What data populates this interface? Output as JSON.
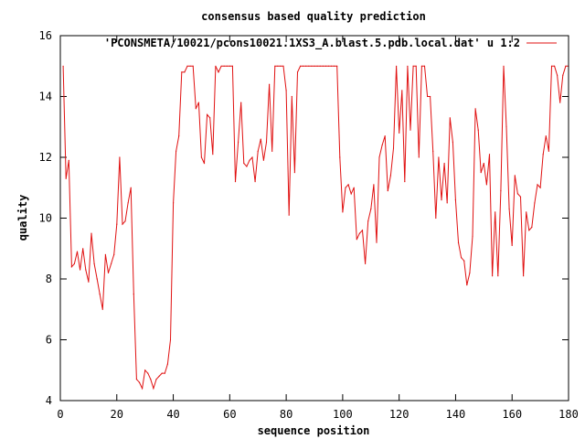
{
  "chart_data": {
    "type": "line",
    "title": "consensus based quality prediction",
    "xlabel": "sequence position",
    "ylabel": "quality",
    "xlim": [
      0,
      180
    ],
    "ylim": [
      4,
      16
    ],
    "xticks": [
      0,
      20,
      40,
      60,
      80,
      100,
      120,
      140,
      160,
      180
    ],
    "yticks": [
      4,
      6,
      8,
      10,
      12,
      14,
      16
    ],
    "grid": false,
    "legend_position": "top-right",
    "series": [
      {
        "name": "'PCONSMETA/10021/pcons10021.1XS3_A.blast.5.pdb.local.dat' u 1:2",
        "color": "#e01010",
        "x": [
          1,
          2,
          3,
          4,
          5,
          6,
          7,
          8,
          9,
          10,
          11,
          12,
          13,
          14,
          15,
          16,
          17,
          18,
          19,
          20,
          21,
          22,
          23,
          24,
          25,
          26,
          27,
          28,
          29,
          30,
          31,
          32,
          33,
          34,
          35,
          36,
          37,
          38,
          39,
          40,
          41,
          42,
          43,
          44,
          45,
          46,
          47,
          48,
          49,
          50,
          51,
          52,
          53,
          54,
          55,
          56,
          57,
          58,
          59,
          60,
          61,
          62,
          63,
          64,
          65,
          66,
          67,
          68,
          69,
          70,
          71,
          72,
          73,
          74,
          75,
          76,
          77,
          78,
          79,
          80,
          81,
          82,
          83,
          84,
          85,
          86,
          87,
          88,
          89,
          90,
          91,
          92,
          93,
          94,
          95,
          96,
          97,
          98,
          99,
          100,
          101,
          102,
          103,
          104,
          105,
          106,
          107,
          108,
          109,
          110,
          111,
          112,
          113,
          114,
          115,
          116,
          117,
          118,
          119,
          120,
          121,
          122,
          123,
          124,
          125,
          126,
          127,
          128,
          129,
          130,
          131,
          132,
          133,
          134,
          135,
          136,
          137,
          138,
          139,
          140,
          141,
          142,
          143,
          144,
          145,
          146,
          147,
          148,
          149,
          150,
          151,
          152,
          153,
          154,
          155,
          156,
          157,
          158,
          159,
          160,
          161,
          162,
          163,
          164,
          165,
          166,
          167,
          168,
          169,
          170,
          171,
          172,
          173,
          174,
          175,
          176,
          177,
          178,
          179,
          180
        ],
        "y": [
          15.0,
          11.3,
          11.9,
          8.4,
          8.5,
          8.9,
          8.3,
          9.0,
          8.3,
          7.9,
          9.5,
          8.5,
          8.0,
          7.5,
          7.0,
          8.8,
          8.2,
          8.5,
          8.8,
          9.8,
          12.0,
          9.8,
          9.9,
          10.5,
          11.0,
          7.5,
          4.7,
          4.6,
          4.4,
          5.0,
          4.9,
          4.7,
          4.4,
          4.7,
          4.8,
          4.9,
          4.9,
          5.2,
          6.0,
          10.5,
          12.2,
          12.7,
          14.8,
          14.8,
          15.0,
          15.0,
          15.0,
          13.6,
          13.8,
          12.0,
          11.8,
          13.4,
          13.3,
          12.1,
          15.0,
          14.8,
          15.0,
          15.0,
          15.0,
          15.0,
          15.0,
          11.2,
          12.5,
          13.8,
          11.8,
          11.7,
          11.9,
          12.0,
          11.2,
          12.2,
          12.6,
          11.9,
          12.5,
          14.4,
          12.2,
          15.0,
          15.0,
          15.0,
          15.0,
          14.2,
          10.1,
          14.0,
          11.5,
          14.8,
          15.0,
          15.0,
          15.0,
          15.0,
          15.0,
          15.0,
          15.0,
          15.0,
          15.0,
          15.0,
          15.0,
          15.0,
          15.0,
          15.0,
          12.0,
          10.2,
          11.0,
          11.1,
          10.8,
          11.0,
          9.3,
          9.5,
          9.6,
          8.5,
          9.9,
          10.3,
          11.1,
          9.2,
          12.0,
          12.4,
          12.7,
          10.9,
          11.4,
          12.3,
          15.0,
          12.8,
          14.2,
          11.2,
          15.0,
          12.9,
          15.0,
          15.0,
          12.0,
          15.0,
          15.0,
          14.0,
          14.0,
          12.2,
          10.0,
          12.0,
          10.6,
          11.8,
          10.5,
          13.3,
          12.5,
          10.6,
          9.2,
          8.7,
          8.6,
          7.8,
          8.2,
          9.4,
          13.6,
          12.9,
          11.5,
          11.8,
          11.1,
          12.1,
          8.1,
          10.2,
          8.1,
          10.9,
          15.0,
          13.0,
          10.3,
          9.1,
          11.4,
          10.8,
          10.7,
          8.1,
          10.2,
          9.6,
          9.7,
          10.5,
          11.1,
          11.0,
          12.1,
          12.7,
          12.2,
          15.0,
          15.0,
          14.7,
          13.8,
          14.7,
          15.0,
          15.0
        ]
      }
    ]
  }
}
